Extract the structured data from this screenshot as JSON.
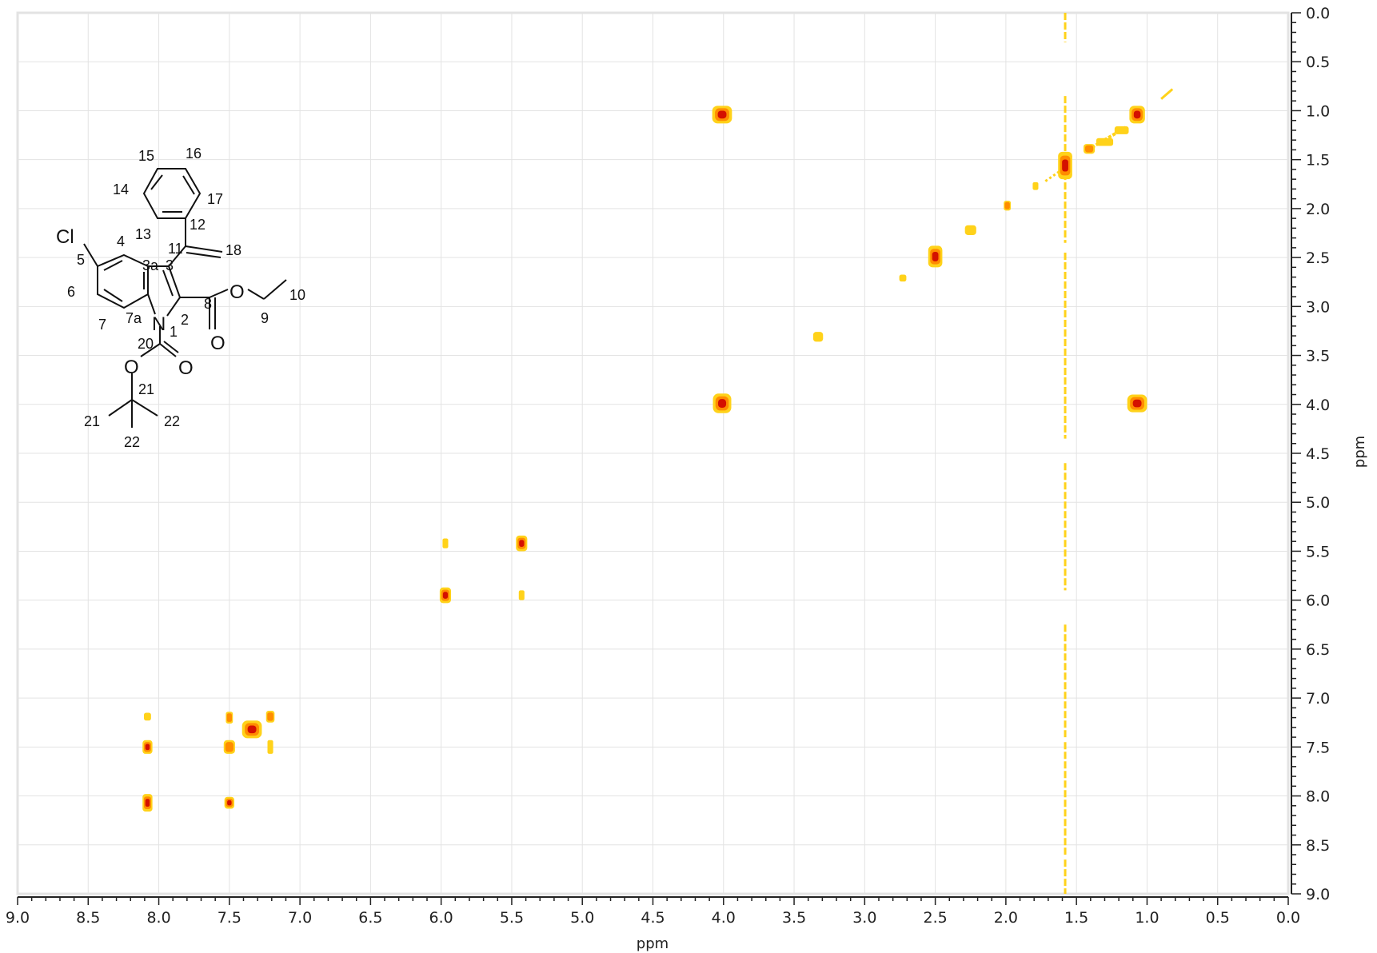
{
  "chart_data": {
    "type": "heatmap",
    "xlabel": "ppm",
    "ylabel": "ppm",
    "xlim": [
      9.0,
      0.0
    ],
    "ylim": [
      0.0,
      9.0
    ],
    "x_ticks": [
      "9.0",
      "8.5",
      "8.0",
      "7.5",
      "7.0",
      "6.5",
      "6.0",
      "5.5",
      "5.0",
      "4.5",
      "4.0",
      "3.5",
      "3.0",
      "2.5",
      "2.0",
      "1.5",
      "1.0",
      "0.5",
      "0.0"
    ],
    "y_ticks": [
      "0.0",
      "0.5",
      "1.0",
      "1.5",
      "2.0",
      "2.5",
      "3.0",
      "3.5",
      "4.0",
      "4.5",
      "5.0",
      "5.5",
      "6.0",
      "6.5",
      "7.0",
      "7.5",
      "8.0",
      "8.5",
      "9.0"
    ],
    "grid": true,
    "colors": {
      "low": "#ffd21a",
      "mid": "#ff8c00",
      "high": "#d41000",
      "grid": "#e3e3e3",
      "frame": "#e6e6e6"
    },
    "peaks": [
      {
        "x": 4.01,
        "y": 1.04,
        "w": 0.14,
        "h": 0.18,
        "i": 1.0
      },
      {
        "x": 4.01,
        "y": 3.99,
        "w": 0.13,
        "h": 0.2,
        "i": 1.0
      },
      {
        "x": 1.07,
        "y": 1.04,
        "w": 0.11,
        "h": 0.18,
        "i": 1.0
      },
      {
        "x": 1.07,
        "y": 3.99,
        "w": 0.14,
        "h": 0.18,
        "i": 1.0
      },
      {
        "x": 1.58,
        "y": 1.56,
        "w": 0.1,
        "h": 0.28,
        "i": 1.0
      },
      {
        "x": 1.41,
        "y": 1.39,
        "w": 0.08,
        "h": 0.1,
        "i": 0.55
      },
      {
        "x": 1.3,
        "y": 1.32,
        "w": 0.12,
        "h": 0.08,
        "i": 0.4
      },
      {
        "x": 1.18,
        "y": 1.2,
        "w": 0.1,
        "h": 0.08,
        "i": 0.35
      },
      {
        "x": 1.99,
        "y": 1.97,
        "w": 0.05,
        "h": 0.1,
        "i": 0.8
      },
      {
        "x": 1.79,
        "y": 1.77,
        "w": 0.04,
        "h": 0.08,
        "i": 0.3
      },
      {
        "x": 2.25,
        "y": 2.22,
        "w": 0.08,
        "h": 0.1,
        "i": 0.3
      },
      {
        "x": 2.5,
        "y": 2.49,
        "w": 0.1,
        "h": 0.22,
        "i": 1.0
      },
      {
        "x": 2.73,
        "y": 2.71,
        "w": 0.05,
        "h": 0.07,
        "i": 0.3
      },
      {
        "x": 3.33,
        "y": 3.31,
        "w": 0.07,
        "h": 0.1,
        "i": 0.35
      },
      {
        "x": 5.97,
        "y": 5.95,
        "w": 0.08,
        "h": 0.16,
        "i": 1.0
      },
      {
        "x": 5.43,
        "y": 5.42,
        "w": 0.08,
        "h": 0.16,
        "i": 1.0
      },
      {
        "x": 5.97,
        "y": 5.42,
        "w": 0.04,
        "h": 0.1,
        "i": 0.45
      },
      {
        "x": 5.43,
        "y": 5.95,
        "w": 0.04,
        "h": 0.1,
        "i": 0.45
      },
      {
        "x": 8.08,
        "y": 8.07,
        "w": 0.07,
        "h": 0.18,
        "i": 1.0
      },
      {
        "x": 8.08,
        "y": 7.5,
        "w": 0.07,
        "h": 0.14,
        "i": 1.0
      },
      {
        "x": 8.08,
        "y": 7.19,
        "w": 0.05,
        "h": 0.08,
        "i": 0.4
      },
      {
        "x": 7.5,
        "y": 8.07,
        "w": 0.07,
        "h": 0.12,
        "i": 1.0
      },
      {
        "x": 7.5,
        "y": 7.5,
        "w": 0.08,
        "h": 0.14,
        "i": 0.65
      },
      {
        "x": 7.5,
        "y": 7.2,
        "w": 0.05,
        "h": 0.12,
        "i": 0.65
      },
      {
        "x": 7.34,
        "y": 7.32,
        "w": 0.14,
        "h": 0.18,
        "i": 1.0
      },
      {
        "x": 7.21,
        "y": 7.19,
        "w": 0.06,
        "h": 0.12,
        "i": 0.65
      },
      {
        "x": 7.21,
        "y": 7.5,
        "w": 0.04,
        "h": 0.14,
        "i": 0.45
      }
    ],
    "ridge": {
      "x": 1.58,
      "y_from": 0.0,
      "y_to": 9.0
    }
  },
  "structure": {
    "atoms": {
      "cl": "Cl",
      "n": "N",
      "o_ester": "O",
      "o_ester_carbonyl": "O",
      "o_boc": "O",
      "o_boc_carbonyl": "O"
    },
    "locants": [
      "15",
      "16",
      "14",
      "17",
      "12",
      "13",
      "4",
      "11",
      "18",
      "5",
      "3a",
      "3",
      "6",
      "8",
      "9",
      "10",
      "7",
      "7a",
      "2",
      "1",
      "20",
      "21",
      "22",
      "21",
      "22"
    ]
  }
}
